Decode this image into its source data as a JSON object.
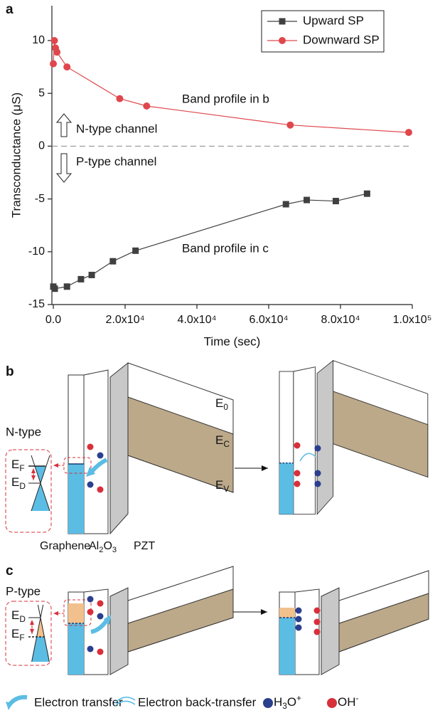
{
  "chart_data": {
    "type": "line",
    "panel_label": "a",
    "x_label": "Time (sec)",
    "y_label": "Transconductance (μS)",
    "xlim": [
      -400,
      100000
    ],
    "ylim": [
      -15,
      13.3
    ],
    "xticks": [
      {
        "value": 0,
        "label": "0.0"
      },
      {
        "value": 20000,
        "label": "2.0x10⁴"
      },
      {
        "value": 40000,
        "label": "4.0x10⁴"
      },
      {
        "value": 60000,
        "label": "6.0x10⁴"
      },
      {
        "value": 80000,
        "label": "8.0x10⁴"
      },
      {
        "value": 100000,
        "label": "1.0x10⁵"
      }
    ],
    "yticks": [
      -15,
      -10,
      -5,
      0,
      5,
      10
    ],
    "hline": 0,
    "legend": "upper right",
    "series": [
      {
        "name": "Upward SP",
        "color": "#404040",
        "marker": "square",
        "x": [
          0,
          400,
          3800,
          7700,
          10700,
          16600,
          22900,
          64800,
          70600,
          78700,
          87400
        ],
        "values": [
          -13.3,
          -13.5,
          -13.3,
          -12.6,
          -12.2,
          -10.9,
          -9.9,
          -5.5,
          -5.1,
          -5.2,
          -4.5
        ]
      },
      {
        "name": "Downward SP",
        "color": "#e0474c",
        "marker": "circle",
        "x": [
          0,
          300,
          600,
          1000,
          3800,
          18500,
          26000,
          66000,
          99000
        ],
        "values": [
          7.8,
          10.0,
          9.3,
          8.9,
          7.5,
          4.5,
          3.8,
          2.0,
          1.3
        ]
      }
    ],
    "annotations": [
      "Band profile in b",
      "N-type channel",
      "P-type channel",
      "Band profile in c"
    ]
  },
  "panel_b": {
    "label": "b",
    "doping": "N-type",
    "inset": {
      "fermi": [
        {
          "text": "E"
        },
        {
          "sub": "F"
        }
      ],
      "dirac": [
        {
          "text": "E"
        },
        {
          "sub": "D"
        }
      ]
    },
    "bands": {
      "vacuum": [
        {
          "text": "E"
        },
        {
          "sub": "0"
        }
      ],
      "conduction": [
        {
          "text": "E"
        },
        {
          "sub": "C"
        }
      ],
      "valence": [
        {
          "text": "E"
        },
        {
          "sub": "V"
        }
      ]
    },
    "layers": [
      [
        {
          "text": "Graphene"
        }
      ],
      [
        {
          "text": "Al"
        },
        {
          "sub": "2"
        },
        {
          "text": "O"
        },
        {
          "sub": "3"
        }
      ],
      [
        {
          "text": "PZT"
        }
      ]
    ]
  },
  "panel_c": {
    "label": "c",
    "doping": "P-type",
    "inset": {
      "dirac": [
        {
          "text": "E"
        },
        {
          "sub": "D"
        }
      ],
      "fermi": [
        {
          "text": "E"
        },
        {
          "sub": "F"
        }
      ]
    }
  },
  "legend": {
    "transfer": "Electron transfer",
    "back_transfer": "Electron back-transfer",
    "hydronium": [
      {
        "text": "H"
      },
      {
        "sub": "3"
      },
      {
        "text": "O"
      },
      {
        "sup": "+"
      }
    ],
    "hydroxide": [
      {
        "text": "OH"
      },
      {
        "sup": "-"
      }
    ]
  }
}
